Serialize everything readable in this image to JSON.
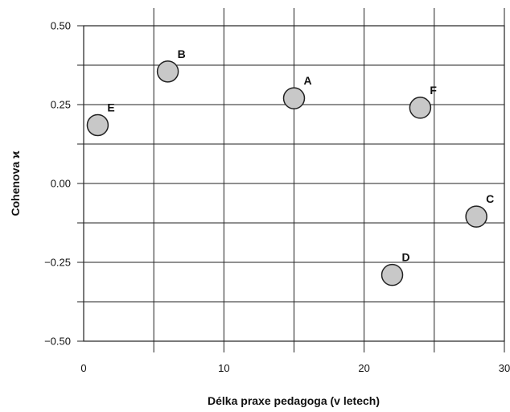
{
  "chart_data": {
    "type": "scatter",
    "title": "",
    "xlabel": "Délka praxe pedagoga (v letech)",
    "ylabel": "Cohenova ϰ",
    "xlim": [
      0,
      30
    ],
    "ylim": [
      -0.5,
      0.5
    ],
    "x_ticks": [
      0,
      10,
      20,
      30
    ],
    "x_tick_labels": [
      "0",
      "10",
      "20",
      "30"
    ],
    "y_ticks": [
      -0.5,
      -0.25,
      0,
      0.25,
      0.5
    ],
    "y_tick_labels": [
      "−0.50",
      "−0.25",
      "0.00",
      "0.25",
      "0.50"
    ],
    "x_grid": [
      5,
      10,
      15,
      20,
      25,
      30
    ],
    "y_grid": [
      -0.5,
      -0.375,
      -0.25,
      -0.125,
      0,
      0.125,
      0.25,
      0.375,
      0.5
    ],
    "grid": true,
    "legend": "none",
    "marker_color": "#c8c8c8",
    "points": [
      {
        "label": "A",
        "x": 15,
        "y": 0.27
      },
      {
        "label": "B",
        "x": 6,
        "y": 0.355
      },
      {
        "label": "C",
        "x": 28,
        "y": -0.105
      },
      {
        "label": "D",
        "x": 22,
        "y": -0.29
      },
      {
        "label": "E",
        "x": 1,
        "y": 0.185
      },
      {
        "label": "F",
        "x": 24,
        "y": 0.24
      }
    ]
  }
}
